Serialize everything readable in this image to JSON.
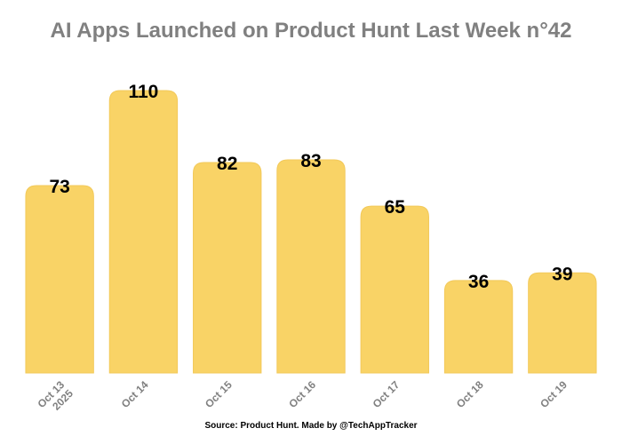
{
  "colors": {
    "bar_fill": "#f9d366",
    "bar_stroke": "#f2c95a",
    "title": "#808080",
    "value_label": "#000000",
    "tick_label": "#808080",
    "source": "#000000",
    "background": "#ffffff"
  },
  "chart_data": {
    "type": "bar",
    "title": "AI Apps Launched on Product Hunt Last Week n°42",
    "xlabel": "",
    "ylabel": "",
    "categories": [
      [
        "Oct 13",
        "2025"
      ],
      [
        "Oct 14"
      ],
      [
        "Oct 15"
      ],
      [
        "Oct 16"
      ],
      [
        "Oct 17"
      ],
      [
        "Oct 18"
      ],
      [
        "Oct 19"
      ]
    ],
    "values": [
      73,
      110,
      82,
      83,
      65,
      36,
      39
    ],
    "ylim": [
      0,
      110
    ],
    "grid": false,
    "legend": "none",
    "data_labels": true,
    "source_note": "Source: Product Hunt. Made by @TechAppTracker"
  }
}
